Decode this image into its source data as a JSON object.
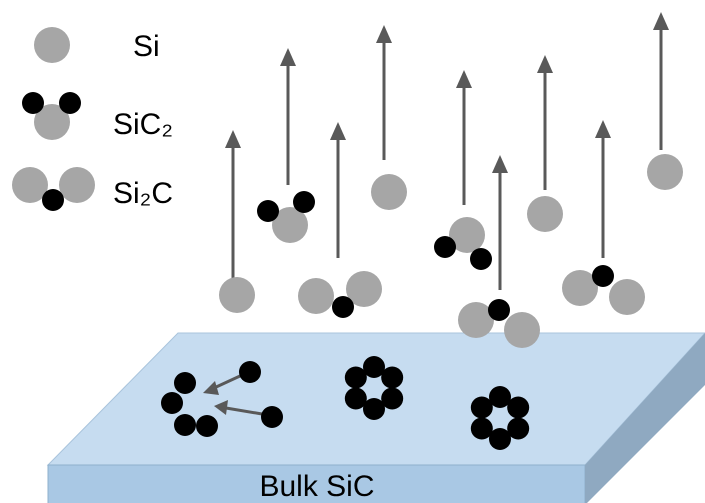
{
  "legend": [
    {
      "label": "Si"
    },
    {
      "label": "SiC₂"
    },
    {
      "label": "Si₂C"
    }
  ],
  "substrate": {
    "label": "Bulk SiC"
  }
}
